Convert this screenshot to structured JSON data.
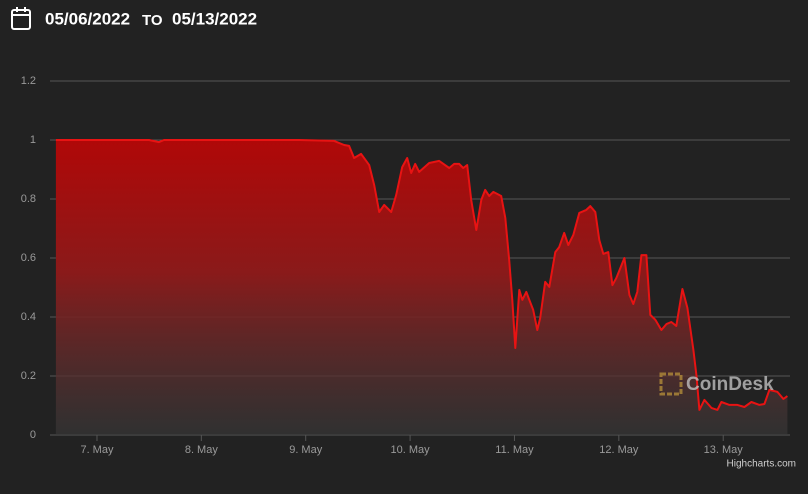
{
  "header": {
    "start_date": "05/06/2022",
    "separator": "TO",
    "end_date": "05/13/2022"
  },
  "chart_data": {
    "type": "area",
    "color": "#e81313",
    "grid": true,
    "watermark": "CoinDesk",
    "credits": "Highcharts.com",
    "xlim": [
      6.55,
      13.64
    ],
    "ylim": [
      0,
      1.2
    ],
    "xticks": [
      {
        "value": 7,
        "label": "7. May"
      },
      {
        "value": 8,
        "label": "8. May"
      },
      {
        "value": 9,
        "label": "9. May"
      },
      {
        "value": 10,
        "label": "10. May"
      },
      {
        "value": 11,
        "label": "11. May"
      },
      {
        "value": 12,
        "label": "12. May"
      },
      {
        "value": 13,
        "label": "13. May"
      }
    ],
    "yticks": [
      0,
      0.2,
      0.4,
      0.6,
      0.8,
      1,
      1.2
    ],
    "x": [
      6.607,
      7.499,
      7.594,
      7.642,
      7.978,
      8.361,
      8.937,
      9.272,
      9.368,
      9.416,
      9.464,
      9.531,
      9.608,
      9.656,
      9.704,
      9.752,
      9.819,
      9.867,
      9.924,
      9.972,
      10.011,
      10.049,
      10.087,
      10.183,
      10.279,
      10.375,
      10.423,
      10.471,
      10.509,
      10.547,
      10.586,
      10.634,
      10.682,
      10.72,
      10.758,
      10.797,
      10.873,
      10.912,
      10.95,
      10.979,
      11.008,
      11.046,
      11.075,
      11.113,
      11.142,
      11.18,
      11.219,
      11.247,
      11.295,
      11.334,
      11.391,
      11.429,
      11.477,
      11.516,
      11.564,
      11.621,
      11.688,
      11.727,
      11.775,
      11.813,
      11.851,
      11.899,
      11.938,
      11.976,
      12.053,
      12.101,
      12.139,
      12.177,
      12.216,
      12.264,
      12.302,
      12.35,
      12.408,
      12.456,
      12.503,
      12.551,
      12.609,
      12.657,
      12.714,
      12.743,
      12.772,
      12.82,
      12.887,
      12.944,
      12.983,
      13.059,
      13.136,
      13.203,
      13.27,
      13.347,
      13.395,
      13.443,
      13.519,
      13.577,
      13.615
    ],
    "values": [
      1.0,
      1.0,
      0.993,
      1.0,
      1.0,
      1.0,
      1.0,
      0.997,
      0.983,
      0.98,
      0.939,
      0.953,
      0.915,
      0.847,
      0.756,
      0.78,
      0.756,
      0.814,
      0.908,
      0.939,
      0.888,
      0.919,
      0.892,
      0.922,
      0.929,
      0.905,
      0.919,
      0.919,
      0.905,
      0.915,
      0.797,
      0.695,
      0.797,
      0.831,
      0.81,
      0.824,
      0.81,
      0.736,
      0.593,
      0.458,
      0.295,
      0.492,
      0.458,
      0.485,
      0.458,
      0.424,
      0.356,
      0.397,
      0.519,
      0.502,
      0.62,
      0.637,
      0.685,
      0.644,
      0.678,
      0.753,
      0.763,
      0.776,
      0.756,
      0.661,
      0.614,
      0.62,
      0.508,
      0.532,
      0.6,
      0.475,
      0.444,
      0.485,
      0.61,
      0.61,
      0.407,
      0.39,
      0.356,
      0.376,
      0.383,
      0.37,
      0.495,
      0.431,
      0.288,
      0.203,
      0.085,
      0.119,
      0.092,
      0.085,
      0.112,
      0.102,
      0.102,
      0.095,
      0.112,
      0.102,
      0.105,
      0.153,
      0.146,
      0.122,
      0.132
    ]
  }
}
